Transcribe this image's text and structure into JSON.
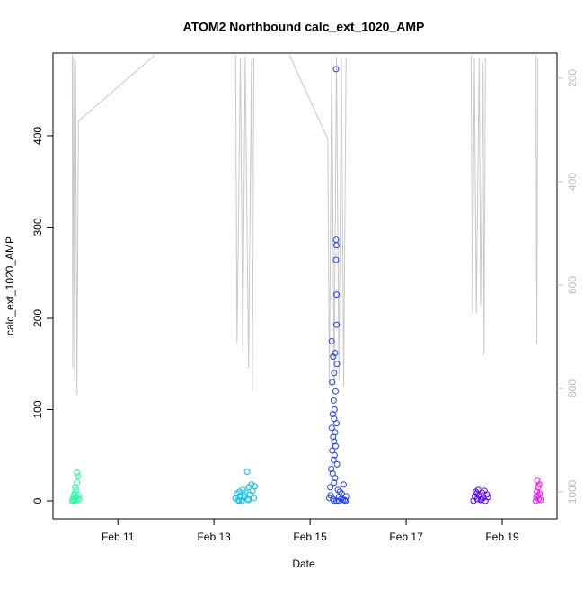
{
  "chart_data": {
    "type": "scatter",
    "title": "ATOM2 Northbound calc_ext_1020_AMP",
    "x_label": "Date",
    "y_label": "calc_ext_1020_AMP",
    "xlim": [
      9.65,
      20.14
    ],
    "ylim": [
      -19.7,
      490.6
    ],
    "y2lim": [
      151.3,
      1052.2
    ],
    "y2_reversed": true,
    "y2_color": "#bbbbbb",
    "xticks": [
      {
        "value": 11,
        "label": "Feb 11"
      },
      {
        "value": 13,
        "label": "Feb 13"
      },
      {
        "value": 15,
        "label": "Feb 15"
      },
      {
        "value": 17,
        "label": "Feb 17"
      },
      {
        "value": 19,
        "label": "Feb 19"
      }
    ],
    "yticks": [
      0,
      100,
      200,
      300,
      400
    ],
    "y2ticks": [
      200,
      400,
      600,
      800,
      1000
    ],
    "series": [
      {
        "color": "#c8c8c8",
        "axis": "y2",
        "line": true,
        "x": [
          10.05,
          10.06,
          10.08,
          10.1,
          10.12,
          10.15,
          10.18,
          11.77,
          null,
          13.45,
          13.48,
          13.55,
          13.6,
          13.65,
          13.72,
          13.78,
          13.8,
          13.83,
          null,
          14.57,
          15.37,
          15.4,
          15.45,
          15.5,
          15.55,
          15.6,
          15.65,
          15.7,
          15.75,
          null,
          18.35,
          18.38,
          18.42,
          18.46,
          18.52,
          18.55,
          18.6,
          18.62,
          18.65,
          null,
          19.7,
          19.72,
          19.74
        ],
        "values": [
          155,
          760,
          160,
          785,
          165,
          812,
          283,
          155,
          null,
          155,
          712,
          160,
          730,
          158,
          760,
          165,
          805,
          160,
          null,
          155,
          318,
          800,
          160,
          790,
          158,
          785,
          160,
          796,
          160,
          null,
          155,
          655,
          160,
          655,
          160,
          640,
          170,
          735,
          160,
          null,
          155,
          713,
          160
        ]
      },
      {
        "color": "#1fffa0",
        "x": [
          10.05,
          10.07,
          10.08,
          10.1,
          10.1,
          10.12,
          10.13,
          10.15,
          10.15,
          10.17,
          10.18,
          10.2,
          10.11,
          10.14,
          10.09,
          10.16
        ],
        "values": [
          0,
          2,
          5,
          1,
          8,
          3,
          12,
          20,
          31,
          27,
          6,
          2,
          15,
          4,
          0,
          1
        ]
      },
      {
        "color": "#00bfff",
        "x": [
          13.45,
          13.48,
          13.5,
          13.53,
          13.55,
          13.58,
          13.6,
          13.63,
          13.65,
          13.69,
          13.7,
          13.73,
          13.75,
          13.78,
          13.8,
          13.83,
          13.85,
          13.52,
          13.62,
          13.72
        ],
        "values": [
          3,
          8,
          1,
          10,
          5,
          0,
          12,
          4,
          9,
          32,
          2,
          15,
          7,
          18,
          11,
          3,
          16,
          0,
          6,
          1
        ]
      },
      {
        "color": "#1f3fff",
        "x": [
          15.54,
          15.54,
          15.55,
          15.54,
          15.55,
          15.55,
          15.45,
          15.52,
          15.48,
          15.56,
          15.5,
          15.46,
          15.53,
          15.49,
          15.51,
          15.47,
          15.5,
          15.55,
          15.45,
          15.52,
          15.48,
          15.5,
          15.53,
          15.46,
          15.51,
          15.49,
          15.56,
          15.44,
          15.47,
          15.52,
          15.5,
          15.42,
          15.58,
          15.62,
          15.66,
          15.7,
          15.75,
          15.4,
          15.43,
          15.6,
          15.65,
          15.72,
          15.5,
          15.55,
          15.48,
          15.6,
          15.68,
          15.74
        ],
        "values": [
          473,
          286,
          280,
          264,
          226,
          193,
          175,
          162,
          158,
          150,
          140,
          130,
          120,
          110,
          100,
          95,
          90,
          85,
          80,
          75,
          70,
          65,
          60,
          55,
          50,
          45,
          40,
          35,
          30,
          25,
          20,
          15,
          12,
          10,
          8,
          18,
          5,
          3,
          6,
          4,
          2,
          1,
          0,
          0,
          2,
          0,
          1,
          0
        ]
      },
      {
        "color": "#5500ff",
        "x": [
          18.4,
          18.43,
          18.45,
          18.48,
          18.5,
          18.52,
          18.55,
          18.58,
          18.6,
          18.63,
          18.65,
          18.68,
          18.7,
          18.47,
          18.57
        ],
        "values": [
          0,
          5,
          10,
          2,
          12,
          6,
          1,
          9,
          3,
          11,
          0,
          7,
          4,
          8,
          2
        ]
      },
      {
        "color": "#ff00ff",
        "x": [
          19.7,
          19.71,
          19.72,
          19.73,
          19.74,
          19.75,
          19.76,
          19.77,
          19.78,
          19.8
        ],
        "values": [
          0,
          4,
          10,
          22,
          6,
          15,
          2,
          18,
          8,
          1
        ]
      }
    ]
  }
}
